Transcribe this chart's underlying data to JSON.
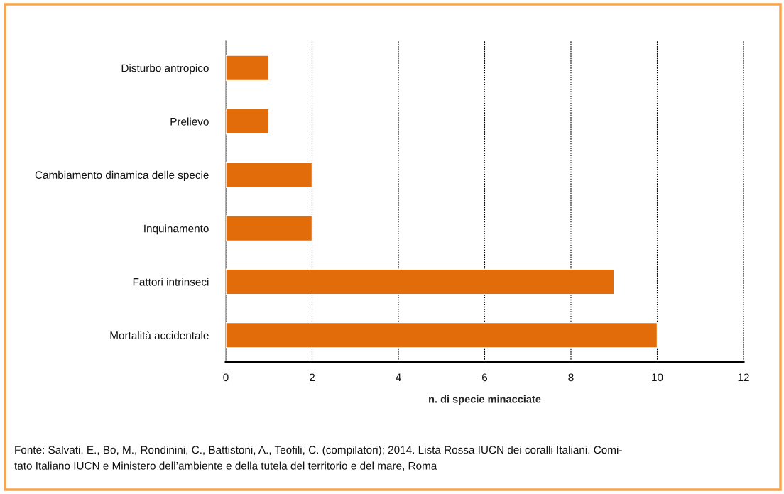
{
  "chart_data": {
    "type": "bar",
    "orientation": "horizontal",
    "categories": [
      "Disturbo antropico",
      "Prelievo",
      "Cambiamento dinamica delle specie",
      "Inquinamento",
      "Fattori intrinseci",
      "Mortalità accidentale"
    ],
    "values": [
      1,
      1,
      2,
      2,
      9,
      10
    ],
    "color": "#e36c0a",
    "xlim": [
      0,
      12
    ],
    "xticks": [
      0,
      2,
      4,
      6,
      8,
      10,
      12
    ],
    "xlabel": "n. di specie minacciate",
    "grid": "x",
    "annotations": [
      "Fonte: Salvati, E., Bo, M., Rondinini, C., Battistoni, A., Teofili, C. (compilatori); 2014. Lista Rossa IUCN dei coralli Italiani. Comi-\ntato Italiano IUCN e Ministero dell’ambiente e della tutela del territorio e del mare, Roma"
    ]
  }
}
